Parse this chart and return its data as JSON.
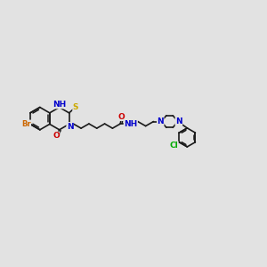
{
  "bg_color": "#e2e2e2",
  "bond_color": "#1a1a1a",
  "bond_width": 1.2,
  "atom_colors": {
    "N": "#0000cc",
    "O": "#cc0000",
    "S": "#ccaa00",
    "Br": "#cc6600",
    "Cl": "#00aa00"
  },
  "font_size": 6.5,
  "xlim": [
    0,
    14
  ],
  "ylim": [
    0,
    10
  ]
}
